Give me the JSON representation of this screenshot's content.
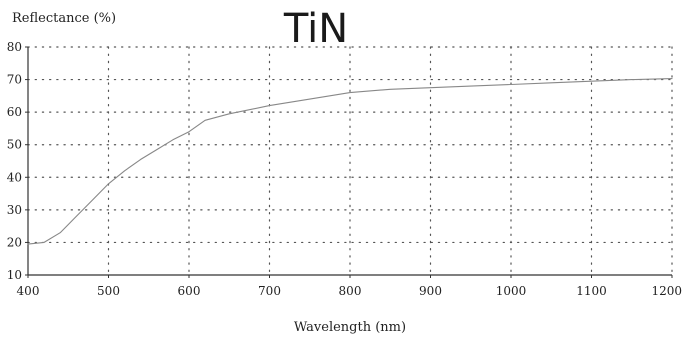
{
  "chart_data": {
    "type": "line",
    "title": "TiN",
    "xlabel": "Wavelength (nm)",
    "ylabel": "Reflectance (%)",
    "xlim": [
      400,
      1200
    ],
    "ylim": [
      10,
      80
    ],
    "xticks": [
      400,
      500,
      600,
      700,
      800,
      900,
      1000,
      1100,
      1200
    ],
    "yticks": [
      10,
      20,
      30,
      40,
      50,
      60,
      70,
      80
    ],
    "grid": true,
    "grid_style": "dotted",
    "legend": "none",
    "series": [
      {
        "color": "#888888",
        "x": [
          400,
          420,
          440,
          460,
          480,
          500,
          520,
          540,
          560,
          580,
          600,
          620,
          650,
          700,
          750,
          800,
          850,
          900,
          950,
          1000,
          1050,
          1100,
          1150,
          1200
        ],
        "y": [
          19.5,
          20,
          23,
          28,
          33,
          38,
          42,
          45.5,
          48.5,
          51.5,
          54,
          57.5,
          59.5,
          62,
          64,
          66,
          67,
          67.5,
          68,
          68.5,
          69,
          69.5,
          70,
          70.3
        ]
      }
    ]
  }
}
